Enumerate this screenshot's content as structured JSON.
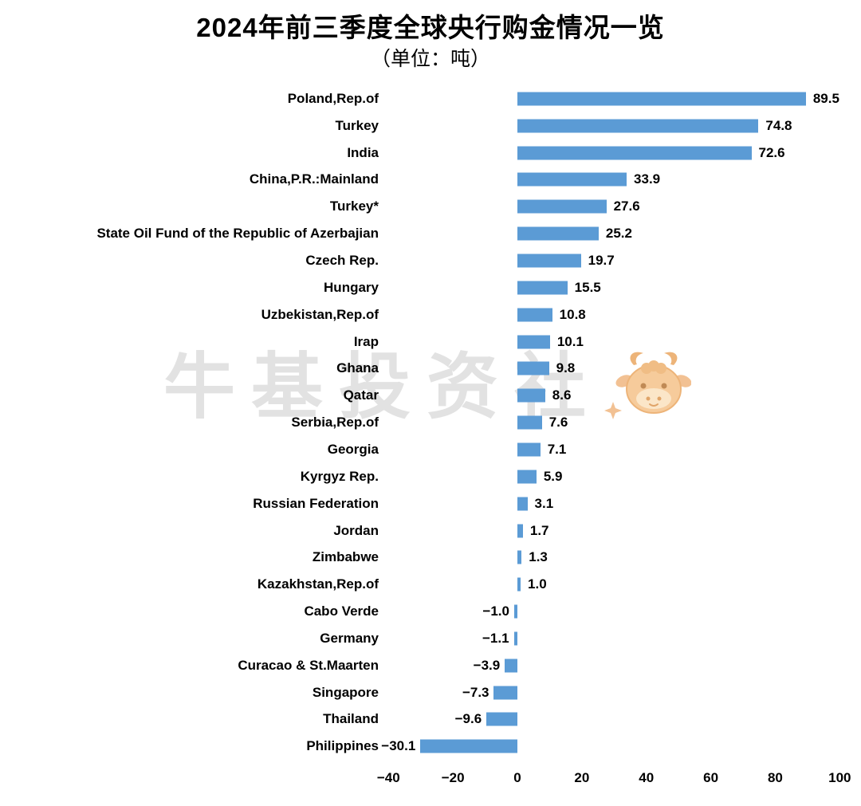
{
  "header": {
    "title": "2024年前三季度全球央行购金情况一览",
    "subtitle": "（单位：吨）"
  },
  "watermark": {
    "text": "牛基投资社"
  },
  "chart_data": {
    "type": "bar",
    "orientation": "horizontal",
    "title": "2024年前三季度全球央行购金情况一览",
    "unit_label": "（单位：吨）",
    "unit": "吨",
    "xlabel": "",
    "ylabel": "",
    "bar_color": "#5B9BD5",
    "xlim": [
      -40,
      100
    ],
    "x_ticks": [
      -40,
      -20,
      0,
      20,
      40,
      60,
      80,
      100
    ],
    "grid": false,
    "legend": false,
    "categories": [
      "Poland,Rep.of",
      "Turkey",
      "India",
      "China,P.R.:Mainland",
      "Turkey*",
      "State Oil Fund of the Republic of Azerbajian",
      "Czech Rep.",
      "Hungary",
      "Uzbekistan,Rep.of",
      "Irap",
      "Ghana",
      "Qatar",
      "Serbia,Rep.of",
      "Georgia",
      "Kyrgyz Rep.",
      "Russian Federation",
      "Jordan",
      "Zimbabwe",
      "Kazakhstan,Rep.of",
      "Cabo Verde",
      "Germany",
      "Curacao & St.Maarten",
      "Singapore",
      "Thailand",
      "Philippines"
    ],
    "values": [
      89.5,
      74.8,
      72.6,
      33.9,
      27.6,
      25.2,
      19.7,
      15.5,
      10.8,
      10.1,
      9.8,
      8.6,
      7.6,
      7.1,
      5.9,
      3.1,
      1.7,
      1.3,
      1.0,
      -1.0,
      -1.1,
      -3.9,
      -7.3,
      -9.6,
      -30.1
    ]
  }
}
